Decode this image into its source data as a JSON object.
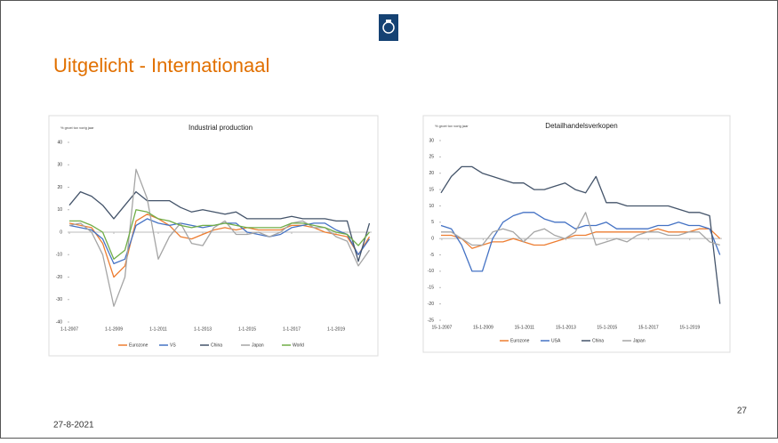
{
  "title": "Uitgelicht - Internationaal",
  "date": "27-8-2021",
  "page_number": "27",
  "chart_data": [
    {
      "type": "line",
      "title": "Industrial production",
      "subtitle": "% groei tov vorig jaar",
      "xlim": [
        2007,
        2020.6
      ],
      "xticks": [
        {
          "value": 2007,
          "label": "1-1-2007"
        },
        {
          "value": 2009,
          "label": "1-1-2009"
        },
        {
          "value": 2011,
          "label": "1-1-2011"
        },
        {
          "value": 2013,
          "label": "1-1-2013"
        },
        {
          "value": 2015,
          "label": "1-1-2015"
        },
        {
          "value": 2017,
          "label": "1-1-2017"
        },
        {
          "value": 2019,
          "label": "1-1-2019"
        }
      ],
      "ylim": [
        -40,
        40
      ],
      "yticks": [
        -40,
        -30,
        -20,
        -10,
        0,
        10,
        20,
        30,
        40
      ],
      "x": [
        2007,
        2007.5,
        2008,
        2008.5,
        2009,
        2009.5,
        2010,
        2010.5,
        2011,
        2011.5,
        2012,
        2012.5,
        2013,
        2013.5,
        2014,
        2014.5,
        2015,
        2015.5,
        2016,
        2016.5,
        2017,
        2017.5,
        2018,
        2018.5,
        2019,
        2019.5,
        2020,
        2020.5
      ],
      "series": [
        {
          "name": "Eurozone",
          "color": "#ed7d31",
          "values": [
            4,
            3,
            2,
            -5,
            -20,
            -15,
            5,
            8,
            6,
            3,
            -2,
            -3,
            -1,
            1,
            2,
            1,
            2,
            1,
            1,
            1,
            3,
            3,
            2,
            0,
            -1,
            -2,
            -10,
            -2
          ]
        },
        {
          "name": "VS",
          "color": "#4472c4",
          "values": [
            3,
            2,
            1,
            -3,
            -14,
            -12,
            3,
            6,
            4,
            3,
            4,
            3,
            2,
            3,
            4,
            4,
            0,
            -1,
            -2,
            -1,
            2,
            3,
            4,
            4,
            1,
            -1,
            -10,
            -3
          ]
        },
        {
          "name": "China",
          "color": "#44546a",
          "values": [
            12,
            18,
            16,
            12,
            6,
            12,
            18,
            14,
            14,
            14,
            11,
            9,
            10,
            9,
            8,
            9,
            6,
            6,
            6,
            6,
            7,
            6,
            6,
            6,
            5,
            5,
            -13,
            4
          ]
        },
        {
          "name": "Japan",
          "color": "#a5a5a5",
          "values": [
            3,
            4,
            0,
            -10,
            -33,
            -20,
            28,
            15,
            -12,
            -2,
            4,
            -5,
            -6,
            2,
            5,
            -1,
            -1,
            0,
            -2,
            0,
            4,
            5,
            2,
            2,
            -2,
            -4,
            -15,
            -8
          ]
        },
        {
          "name": "World",
          "color": "#70ad47",
          "values": [
            5,
            5,
            3,
            0,
            -12,
            -8,
            10,
            9,
            6,
            5,
            3,
            2,
            3,
            3,
            4,
            3,
            2,
            2,
            2,
            2,
            4,
            4,
            3,
            2,
            0,
            -1,
            -6,
            0
          ]
        }
      ]
    },
    {
      "type": "line",
      "title": "Detailhandelsverkopen",
      "subtitle": "% groei tov vorig jaar",
      "xlim": [
        2007,
        2020.6
      ],
      "xticks": [
        {
          "value": 2007.04,
          "label": "15-1-2007"
        },
        {
          "value": 2009.04,
          "label": "15-1-2009"
        },
        {
          "value": 2011.04,
          "label": "15-1-2011"
        },
        {
          "value": 2013.04,
          "label": "15-1-2013"
        },
        {
          "value": 2015.04,
          "label": "15-1-2015"
        },
        {
          "value": 2017.04,
          "label": "15-1-2017"
        },
        {
          "value": 2019.04,
          "label": "15-1-2019"
        }
      ],
      "ylim": [
        -25,
        30
      ],
      "yticks": [
        -25,
        -20,
        -15,
        -10,
        -5,
        0,
        5,
        10,
        15,
        20,
        25,
        30
      ],
      "x": [
        2007,
        2007.5,
        2008,
        2008.5,
        2009,
        2009.5,
        2010,
        2010.5,
        2011,
        2011.5,
        2012,
        2012.5,
        2013,
        2013.5,
        2014,
        2014.5,
        2015,
        2015.5,
        2016,
        2016.5,
        2017,
        2017.5,
        2018,
        2018.5,
        2019,
        2019.5,
        2020,
        2020.5
      ],
      "series": [
        {
          "name": "Eurozone",
          "color": "#ed7d31",
          "values": [
            1,
            1,
            0,
            -3,
            -2,
            -1,
            -1,
            0,
            -1,
            -2,
            -2,
            -1,
            0,
            1,
            1,
            2,
            2,
            2,
            2,
            2,
            2,
            3,
            2,
            2,
            2,
            3,
            3,
            0
          ]
        },
        {
          "name": "USA",
          "color": "#4472c4",
          "values": [
            4,
            3,
            -2,
            -10,
            -10,
            0,
            5,
            7,
            8,
            8,
            6,
            5,
            5,
            3,
            4,
            4,
            5,
            3,
            3,
            3,
            3,
            4,
            4,
            5,
            4,
            4,
            3,
            -5
          ]
        },
        {
          "name": "China",
          "color": "#44546a",
          "values": [
            14,
            19,
            22,
            22,
            20,
            19,
            18,
            17,
            17,
            15,
            15,
            16,
            17,
            15,
            14,
            19,
            11,
            11,
            10,
            10,
            10,
            10,
            10,
            9,
            8,
            8,
            7,
            -20
          ]
        },
        {
          "name": "Japan",
          "color": "#a5a5a5",
          "values": [
            2,
            2,
            0,
            -2,
            -2,
            2,
            3,
            2,
            -1,
            2,
            3,
            1,
            0,
            2,
            8,
            -2,
            -1,
            0,
            -1,
            1,
            2,
            2,
            1,
            1,
            2,
            2,
            -1,
            -2
          ]
        }
      ]
    }
  ]
}
